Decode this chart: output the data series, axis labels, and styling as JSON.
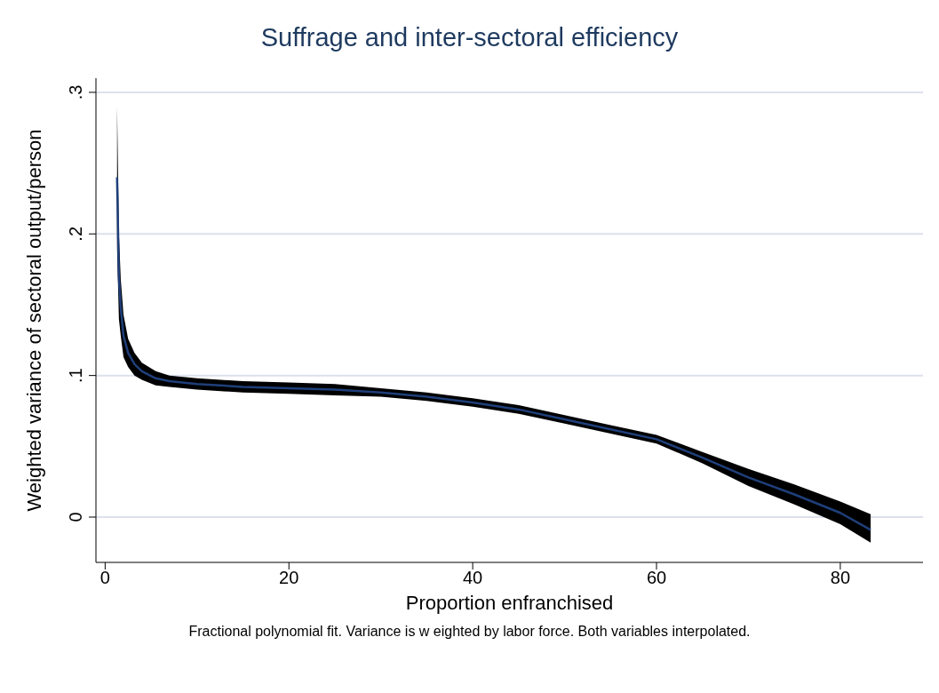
{
  "chart_data": {
    "type": "line",
    "title": "Suffrage and inter-sectoral efficiency",
    "xlabel": "Proportion enfranchised",
    "ylabel": "Weighted variance of sectoral output/person",
    "annotations": [
      "Fractional polynomial fit. Variance is w eighted by labor force. Both variables interpolated."
    ],
    "x": [
      1.3,
      1.5,
      1.7,
      2,
      2.5,
      3.2,
      4,
      5.5,
      7,
      10,
      15,
      20,
      25,
      30,
      35,
      40,
      45,
      50,
      55,
      60,
      65,
      70,
      75,
      80,
      83.3
    ],
    "series": [
      {
        "color": "#1f3f7a",
        "values": [
          0.24,
          0.169,
          0.148,
          0.128,
          0.116,
          0.108,
          0.103,
          0.098,
          0.096,
          0.094,
          0.092,
          0.091,
          0.09,
          0.088,
          0.085,
          0.081,
          0.076,
          0.069,
          0.062,
          0.055,
          0.042,
          0.028,
          0.016,
          0.003,
          -0.009
        ],
        "lower": [
          0.19,
          0.14,
          0.128,
          0.113,
          0.106,
          0.1,
          0.097,
          0.093,
          0.092,
          0.09,
          0.088,
          0.087,
          0.086,
          0.085,
          0.082,
          0.078,
          0.073,
          0.066,
          0.059,
          0.052,
          0.038,
          0.022,
          0.009,
          -0.005,
          -0.018
        ],
        "upper": [
          0.29,
          0.2,
          0.168,
          0.143,
          0.126,
          0.116,
          0.109,
          0.103,
          0.1,
          0.098,
          0.096,
          0.095,
          0.094,
          0.091,
          0.088,
          0.084,
          0.079,
          0.072,
          0.065,
          0.058,
          0.046,
          0.034,
          0.023,
          0.011,
          0.002
        ]
      }
    ],
    "xlim": [
      -1,
      89
    ],
    "xticks": [
      0,
      20,
      40,
      60,
      80
    ],
    "ylim": [
      -0.032,
      0.31
    ],
    "yticks": [
      {
        "value": 0,
        "label": "0"
      },
      {
        "value": 0.1,
        "label": ".1"
      },
      {
        "value": 0.2,
        "label": ".2"
      },
      {
        "value": 0.3,
        "label": ".3"
      }
    ],
    "grid": "y",
    "marker": "none",
    "line_style": "solid"
  }
}
